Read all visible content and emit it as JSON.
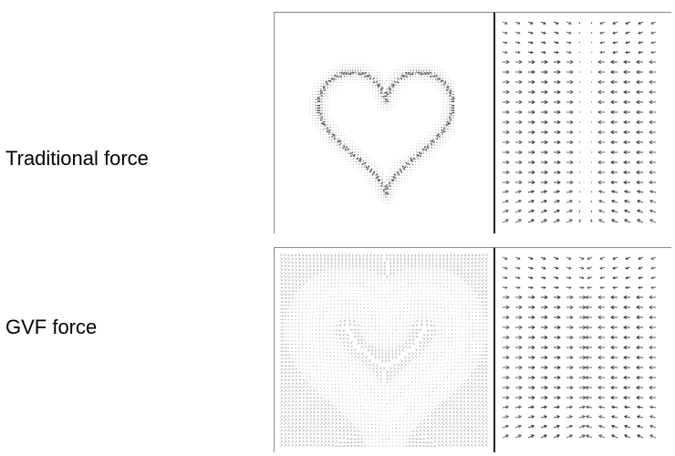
{
  "rows": [
    {
      "label": "Traditional force"
    },
    {
      "label": "GVF force"
    }
  ],
  "colors": {
    "arrow": "#333333",
    "arrow_light": "#9a9a9a",
    "divider": "#222222",
    "border": "#888888"
  }
}
